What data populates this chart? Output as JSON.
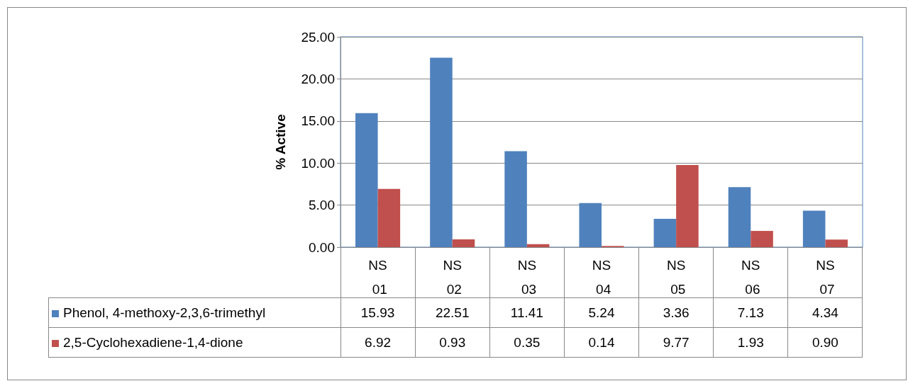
{
  "chart_data": {
    "type": "bar",
    "ylabel": "% Active",
    "categories": [
      "NS 01",
      "NS 02",
      "NS 03",
      "NS 04",
      "NS 05",
      "NS 06",
      "NS 07"
    ],
    "series": [
      {
        "name": "Phenol, 4-methoxy-2,3,6-trimethyl",
        "color": "#4f81bd",
        "values": [
          15.93,
          22.51,
          11.41,
          5.24,
          3.36,
          7.13,
          4.34
        ],
        "value_labels": [
          "15.93",
          "22.51",
          "11.41",
          "5.24",
          "3.36",
          "7.13",
          "4.34"
        ]
      },
      {
        "name": "2,5-Cyclohexadiene-1,4-dione",
        "color": "#c0504d",
        "values": [
          6.92,
          0.93,
          0.35,
          0.14,
          9.77,
          1.93,
          0.9
        ],
        "value_labels": [
          "6.92",
          "0.93",
          "0.35",
          "0.14",
          "9.77",
          "1.93",
          "0.90"
        ]
      }
    ],
    "ylim": [
      0,
      25
    ],
    "yticks": [
      {
        "value": 0,
        "label": "0.00"
      },
      {
        "value": 5,
        "label": "5.00"
      },
      {
        "value": 10,
        "label": "10.00"
      },
      {
        "value": 15,
        "label": "15.00"
      },
      {
        "value": 20,
        "label": "20.00"
      },
      {
        "value": 25,
        "label": "25.00"
      }
    ],
    "grid": "y",
    "legend": "bottom left"
  }
}
